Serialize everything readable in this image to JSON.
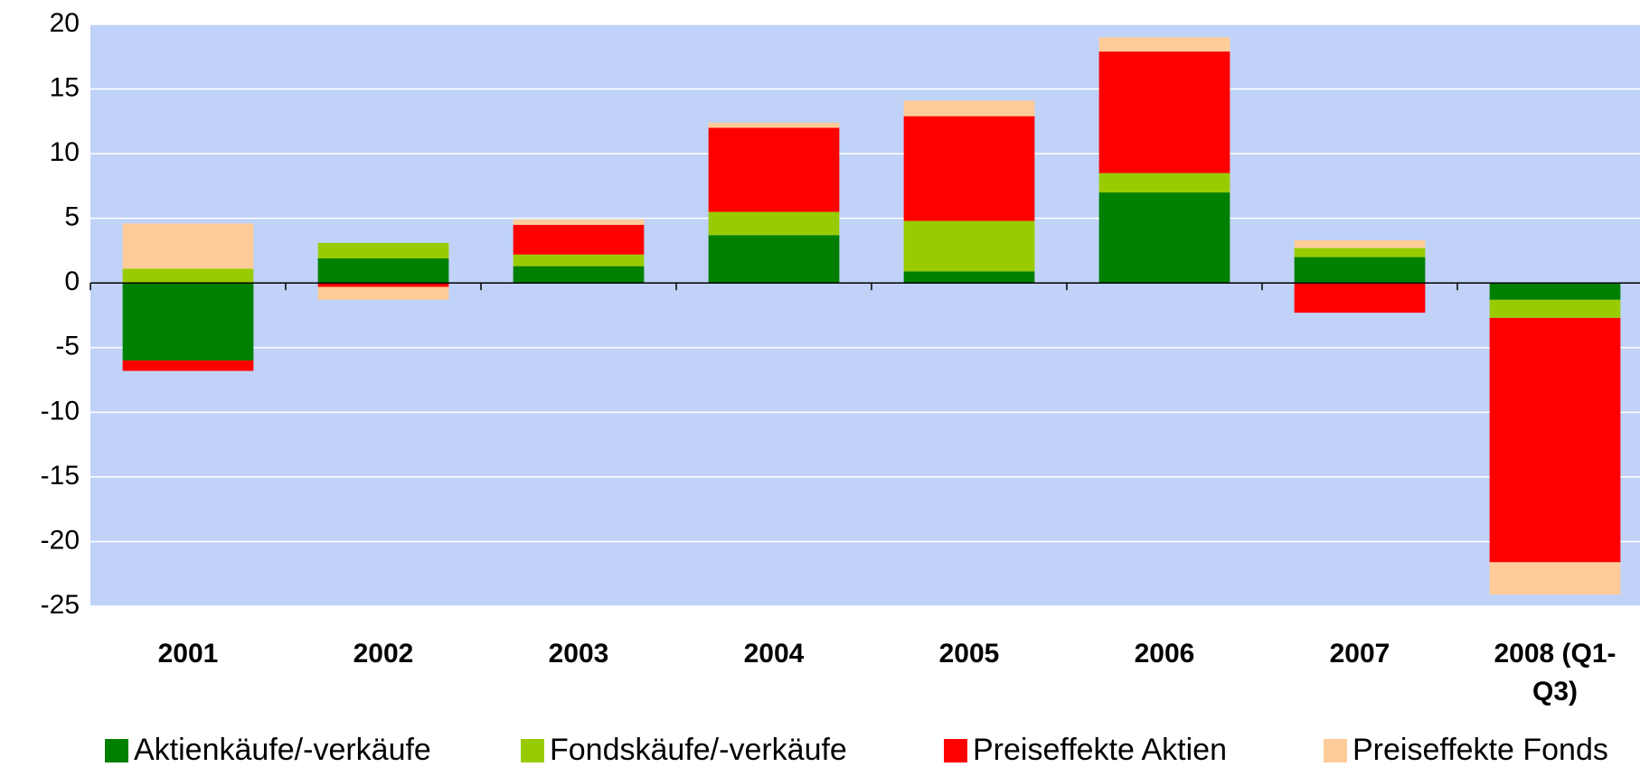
{
  "chart_data": {
    "type": "stacked_bar",
    "categories": [
      "2001",
      "2002",
      "2003",
      "2004",
      "2005",
      "2006",
      "2007",
      "2008 (Q1-Q3)"
    ],
    "series": [
      {
        "name": "Aktienkäufe/-verkäufe",
        "color": "#008000",
        "values": [
          -6.0,
          1.9,
          1.3,
          3.7,
          0.9,
          7.0,
          2.0,
          -1.3
        ]
      },
      {
        "name": "Fondskäufe/-verkäufe",
        "color": "#99CC00",
        "values": [
          1.1,
          1.2,
          0.9,
          1.8,
          3.9,
          1.5,
          0.7,
          -1.4
        ]
      },
      {
        "name": "Preiseffekte Aktien",
        "color": "#FF0000",
        "values": [
          -0.8,
          -0.3,
          2.3,
          6.5,
          8.1,
          9.4,
          -2.3,
          -18.9
        ]
      },
      {
        "name": "Preiseffekte Fonds",
        "color": "#FFCC99",
        "values": [
          3.5,
          -1.0,
          0.4,
          0.4,
          1.2,
          1.1,
          0.6,
          -2.5
        ]
      }
    ],
    "ylim": [
      -25,
      20
    ],
    "yticks": [
      -25,
      -20,
      -15,
      -10,
      -5,
      0,
      5,
      10,
      15,
      20
    ],
    "grid": true,
    "legend": "bottom"
  }
}
